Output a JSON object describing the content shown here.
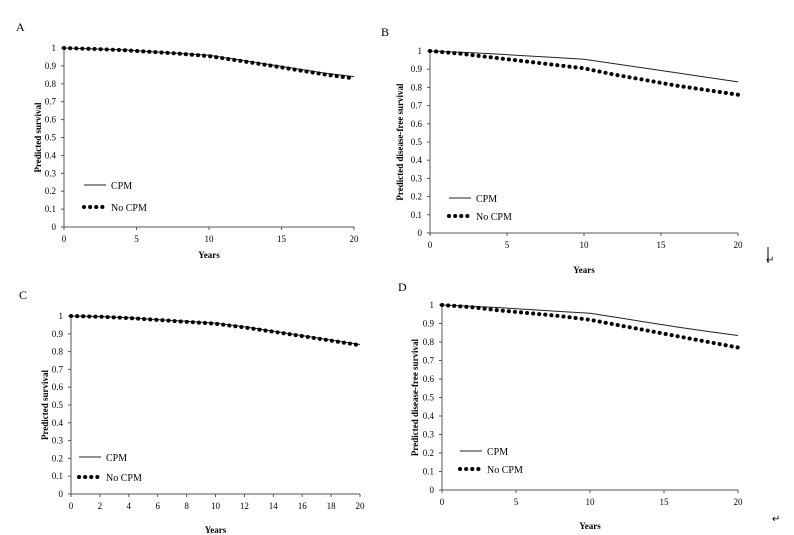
{
  "chart_data": [
    {
      "panel": "A",
      "type": "line",
      "xlabel": "Years",
      "ylabel": "Predicted survival",
      "xlim": [
        0,
        20
      ],
      "ylim": [
        0,
        1
      ],
      "xticks": [
        0,
        5,
        10,
        15,
        20
      ],
      "yticks": [
        0,
        0.1,
        0.2,
        0.3,
        0.4,
        0.5,
        0.6,
        0.7,
        0.8,
        0.9,
        1
      ],
      "x": [
        0,
        2,
        4,
        6,
        8,
        10,
        12,
        14,
        16,
        18,
        20
      ],
      "series": [
        {
          "name": "CPM",
          "style": "solid",
          "values": [
            1.0,
            0.995,
            0.99,
            0.98,
            0.97,
            0.96,
            0.935,
            0.91,
            0.885,
            0.86,
            0.84
          ]
        },
        {
          "name": "No CPM",
          "style": "dotted",
          "values": [
            1.0,
            0.995,
            0.988,
            0.978,
            0.968,
            0.955,
            0.93,
            0.905,
            0.878,
            0.852,
            0.83
          ]
        }
      ],
      "legend": "bottom-left",
      "grid": false
    },
    {
      "panel": "B",
      "type": "line",
      "xlabel": "Years",
      "ylabel": "Predicted disease-free survival",
      "xlim": [
        0,
        20
      ],
      "ylim": [
        0,
        1
      ],
      "xticks": [
        0,
        5,
        10,
        15,
        20
      ],
      "yticks": [
        0,
        0.1,
        0.2,
        0.3,
        0.4,
        0.5,
        0.6,
        0.7,
        0.8,
        0.9,
        1
      ],
      "x": [
        0,
        2,
        4,
        6,
        8,
        10,
        12,
        14,
        16,
        18,
        20
      ],
      "series": [
        {
          "name": "CPM",
          "style": "solid",
          "values": [
            1.0,
            0.993,
            0.985,
            0.975,
            0.965,
            0.955,
            0.93,
            0.905,
            0.88,
            0.855,
            0.83
          ]
        },
        {
          "name": "No CPM",
          "style": "dotted",
          "values": [
            1.0,
            0.985,
            0.965,
            0.945,
            0.925,
            0.905,
            0.87,
            0.84,
            0.81,
            0.785,
            0.76
          ]
        }
      ],
      "legend": "bottom-left",
      "grid": false
    },
    {
      "panel": "C",
      "type": "line",
      "xlabel": "Years",
      "ylabel": "Predicted survival",
      "xlim": [
        0,
        20
      ],
      "ylim": [
        0,
        1
      ],
      "xticks": [
        0,
        2,
        4,
        6,
        8,
        10,
        12,
        14,
        16,
        18,
        20
      ],
      "yticks": [
        0,
        0.1,
        0.2,
        0.3,
        0.4,
        0.5,
        0.6,
        0.7,
        0.8,
        0.9,
        1
      ],
      "x": [
        0,
        2,
        4,
        6,
        8,
        10,
        12,
        14,
        16,
        18,
        20
      ],
      "series": [
        {
          "name": "CPM",
          "style": "solid",
          "values": [
            1.0,
            0.997,
            0.99,
            0.98,
            0.97,
            0.96,
            0.94,
            0.915,
            0.89,
            0.865,
            0.84
          ]
        },
        {
          "name": "No CPM",
          "style": "dotted",
          "values": [
            1.0,
            0.996,
            0.988,
            0.978,
            0.967,
            0.957,
            0.936,
            0.912,
            0.887,
            0.862,
            0.836
          ]
        }
      ],
      "legend": "bottom-left",
      "grid": false
    },
    {
      "panel": "D",
      "type": "line",
      "xlabel": "Years",
      "ylabel": "Predicted disease-free survival",
      "xlim": [
        0,
        20
      ],
      "ylim": [
        0,
        1
      ],
      "xticks": [
        0,
        5,
        10,
        15,
        20
      ],
      "yticks": [
        0,
        0.1,
        0.2,
        0.3,
        0.4,
        0.5,
        0.6,
        0.7,
        0.8,
        0.9,
        1
      ],
      "x": [
        0,
        2,
        4,
        6,
        8,
        10,
        12,
        14,
        16,
        18,
        20
      ],
      "series": [
        {
          "name": "CPM",
          "style": "solid",
          "values": [
            1.0,
            0.993,
            0.985,
            0.975,
            0.965,
            0.955,
            0.93,
            0.905,
            0.88,
            0.857,
            0.835
          ]
        },
        {
          "name": "No CPM",
          "style": "dotted",
          "values": [
            1.0,
            0.988,
            0.97,
            0.955,
            0.94,
            0.92,
            0.89,
            0.86,
            0.83,
            0.8,
            0.77
          ]
        }
      ],
      "legend": "bottom-left",
      "grid": false
    }
  ],
  "return_mark": "↵"
}
